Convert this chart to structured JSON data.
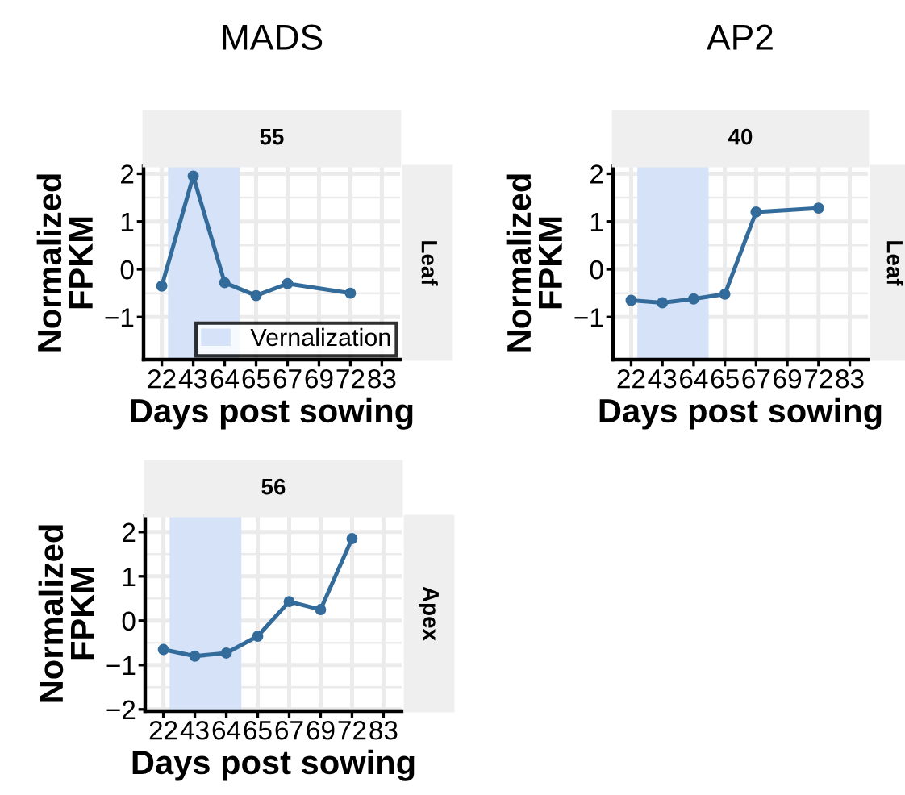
{
  "chart_data": [
    {
      "type": "line",
      "title": "MADS",
      "subtitle": "55",
      "annotations": [
        "Leaf"
      ],
      "xlabel": "Days post sowing",
      "ylabel": "Normalized\nFPKM",
      "categories": [
        "22",
        "43",
        "64",
        "65",
        "67",
        "69",
        "72",
        "83"
      ],
      "ylim": [
        -1.89,
        2.16
      ],
      "yticks": [
        -1,
        0,
        1,
        2
      ],
      "grid": true,
      "marker": "circle",
      "legend": "bottom right",
      "series": [
        {
          "color": "#336b9a",
          "values": [
            -0.35,
            1.95,
            -0.28,
            -0.55,
            -0.3,
            null,
            -0.5,
            null
          ]
        }
      ],
      "bands": [
        {
          "axis": "x",
          "from": "22",
          "to": "64",
          "label": "Vernalization",
          "color": "#d5e2f7"
        }
      ]
    },
    {
      "type": "line",
      "title": "AP2",
      "subtitle": "40",
      "annotations": [
        "Leaf"
      ],
      "xlabel": "Days post sowing",
      "ylabel": "Normalized\nFPKM",
      "categories": [
        "22",
        "43",
        "64",
        "65",
        "67",
        "69",
        "72",
        "83"
      ],
      "ylim": [
        -1.89,
        2.16
      ],
      "yticks": [
        -1,
        0,
        1,
        2
      ],
      "grid": true,
      "marker": "circle",
      "series": [
        {
          "color": "#336b9a",
          "values": [
            -0.65,
            -0.7,
            -0.62,
            -0.52,
            1.2,
            null,
            1.28,
            null
          ]
        }
      ],
      "bands": [
        {
          "axis": "x",
          "from": "22",
          "to": "64",
          "color": "#d5e2f7"
        }
      ]
    },
    {
      "type": "line",
      "subtitle": "56",
      "annotations": [
        "Apex"
      ],
      "xlabel": "Days post sowing",
      "ylabel": "Normalized\nFPKM",
      "categories": [
        "22",
        "43",
        "64",
        "65",
        "67",
        "69",
        "72",
        "83"
      ],
      "ylim": [
        -2.04,
        2.36
      ],
      "yticks": [
        -2,
        -1,
        0,
        1,
        2
      ],
      "grid": true,
      "marker": "circle",
      "series": [
        {
          "color": "#336b9a",
          "values": [
            -0.65,
            -0.8,
            -0.73,
            -0.35,
            0.43,
            0.25,
            1.85,
            null
          ]
        }
      ],
      "bands": [
        {
          "axis": "x",
          "from": "22",
          "to": "64",
          "color": "#d5e2f7"
        }
      ]
    }
  ]
}
